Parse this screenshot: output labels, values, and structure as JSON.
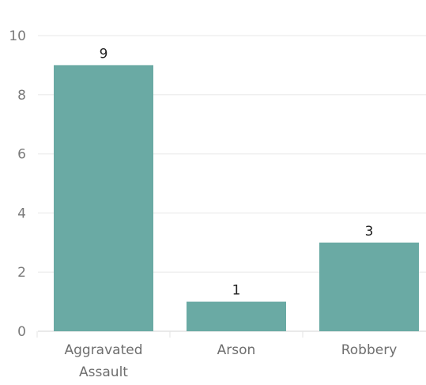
{
  "chart_data": {
    "type": "bar",
    "title": "",
    "xlabel": "",
    "ylabel": "",
    "categories": [
      "Aggravated Assault",
      "Arson",
      "Robbery"
    ],
    "category_label_lines": [
      [
        "Aggravated",
        "Assault"
      ],
      [
        "Arson"
      ],
      [
        "Robbery"
      ]
    ],
    "values": [
      9,
      1,
      3
    ],
    "data_labels": [
      "9",
      "1",
      "3"
    ],
    "ylim": [
      0,
      10
    ],
    "yticks": [
      0,
      2,
      4,
      6,
      8,
      10
    ],
    "ytick_labels": [
      "0",
      "2",
      "4",
      "6",
      "8",
      "10"
    ],
    "grid": true,
    "legend": "none",
    "colors": {
      "bar": "#6aaaa4",
      "grid": "#efefef",
      "axis": "#e3e3e3"
    }
  }
}
